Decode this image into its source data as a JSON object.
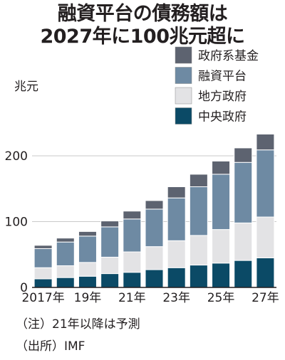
{
  "title_line1": "融資平台の債務額は",
  "title_line2": "2027年に100兆元超に",
  "note": "（注）21年以降は予測",
  "source": "（出所）IMF",
  "chart_data": {
    "type": "bar",
    "stacked": true,
    "ylabel": "兆元",
    "ylim": [
      0,
      230
    ],
    "yticks": [
      0,
      100,
      200
    ],
    "categories": [
      "2017",
      "2018",
      "2019",
      "2020",
      "2021",
      "2022",
      "2023",
      "2024",
      "2025",
      "2026",
      "2027"
    ],
    "x_tick_labels": [
      {
        "index": 0,
        "label": "2017年"
      },
      {
        "index": 2,
        "label": "19年"
      },
      {
        "index": 4,
        "label": "21年"
      },
      {
        "index": 6,
        "label": "23年"
      },
      {
        "index": 8,
        "label": "25年"
      },
      {
        "index": 10,
        "label": "27年"
      }
    ],
    "legend_position": "top-right",
    "series": [
      {
        "name": "中央政府",
        "color": "#0b4a66",
        "values": [
          13,
          15,
          17,
          21,
          23,
          27,
          30,
          34,
          37,
          41,
          45
        ]
      },
      {
        "name": "地方政府",
        "color": "#e3e3e5",
        "values": [
          17,
          18,
          21,
          25,
          31,
          35,
          41,
          45,
          51,
          57,
          62
        ]
      },
      {
        "name": "融資平台",
        "color": "#6e8aa3",
        "values": [
          29,
          36,
          40,
          46,
          50,
          57,
          65,
          74,
          84,
          92,
          102
        ]
      },
      {
        "name": "政府系基金",
        "color": "#5d6370",
        "values": [
          5,
          6,
          7,
          9,
          12,
          13,
          17,
          19,
          20,
          22,
          24
        ]
      }
    ]
  }
}
